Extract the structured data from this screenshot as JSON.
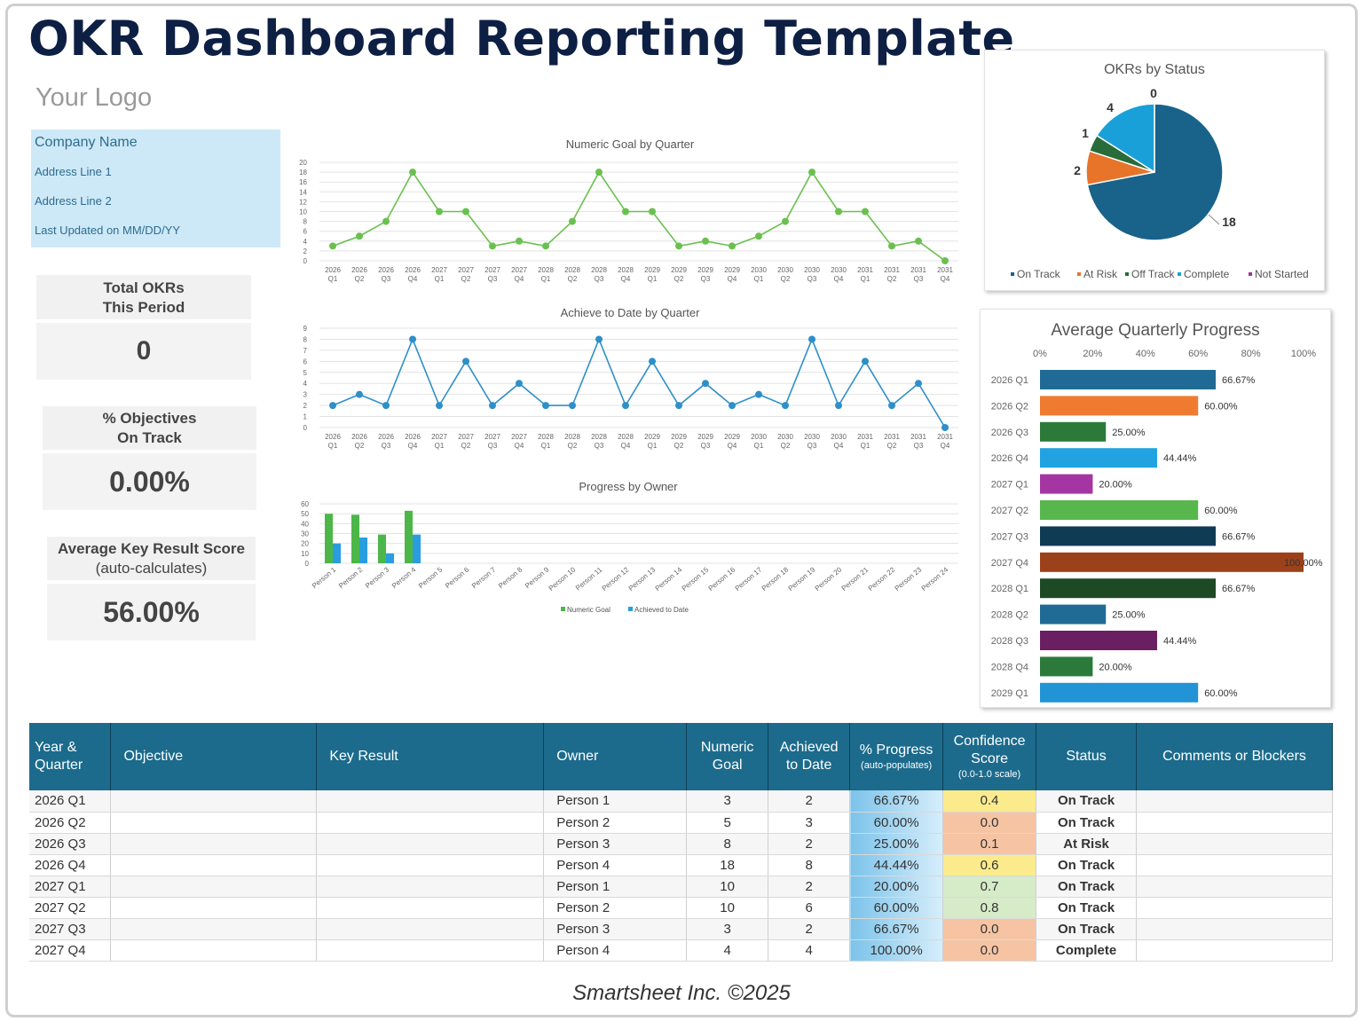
{
  "title": "OKR Dashboard Reporting Template",
  "logo": "Your Logo",
  "company": {
    "name": "Company Name",
    "address1": "Address Line 1",
    "address2": "Address Line 2",
    "updated": "Last Updated on MM/DD/YY"
  },
  "kpis": {
    "total_label": "Total OKRs",
    "total_label2": "This Period",
    "total_value": "0",
    "ontrack_label": "% Objectives",
    "ontrack_label2": "On Track",
    "ontrack_value": "0.00%",
    "avg_label": "Average Key Result Score",
    "avg_label2": "(auto-calculates)",
    "avg_value": "56.00%"
  },
  "charts": {
    "numeric": {
      "title": "Numeric Goal by Quarter",
      "color": "#6ac04f",
      "ylim": [
        0,
        20
      ],
      "yticks": [
        0,
        2,
        4,
        6,
        8,
        10,
        12,
        14,
        16,
        18,
        20
      ],
      "years": [
        "2026",
        "2026",
        "2026",
        "2026",
        "2027",
        "2027",
        "2027",
        "2027",
        "2028",
        "2028",
        "2028",
        "2028",
        "2029",
        "2029",
        "2029",
        "2029",
        "2030",
        "2030",
        "2030",
        "2030",
        "2031",
        "2031",
        "2031",
        "2031"
      ],
      "quarters": [
        "Q1",
        "Q2",
        "Q3",
        "Q4",
        "Q1",
        "Q2",
        "Q3",
        "Q4",
        "Q1",
        "Q2",
        "Q3",
        "Q4",
        "Q1",
        "Q2",
        "Q3",
        "Q4",
        "Q1",
        "Q2",
        "Q3",
        "Q4",
        "Q1",
        "Q2",
        "Q3",
        "Q4"
      ],
      "values": [
        3,
        5,
        8,
        18,
        10,
        10,
        3,
        4,
        3,
        8,
        18,
        10,
        10,
        3,
        4,
        3,
        5,
        8,
        18,
        10,
        10,
        3,
        4,
        0
      ]
    },
    "achieved": {
      "title": "Achieve to Date by Quarter",
      "color": "#2e8fc9",
      "ylim": [
        0,
        9
      ],
      "yticks": [
        0,
        1,
        2,
        3,
        4,
        5,
        6,
        7,
        8,
        9
      ],
      "values": [
        2,
        3,
        2,
        8,
        2,
        6,
        2,
        4,
        2,
        2,
        8,
        2,
        6,
        2,
        4,
        2,
        3,
        2,
        8,
        2,
        6,
        2,
        4,
        0
      ]
    },
    "owner": {
      "title": "Progress by Owner",
      "ylim": [
        0,
        60
      ],
      "yticks": [
        0,
        10,
        20,
        30,
        40,
        50,
        60
      ],
      "categories": [
        "Person 1",
        "Person 2",
        "Person 3",
        "Person 4",
        "Person 5",
        "Person 6",
        "Person 7",
        "Person 8",
        "Person 9",
        "Person 10",
        "Person 11",
        "Person 12",
        "Person 13",
        "Person 14",
        "Person 15",
        "Person 16",
        "Person 17",
        "Person 18",
        "Person 19",
        "Person 20",
        "Person 21",
        "Person 22",
        "Person 23",
        "Person 24"
      ],
      "series": [
        {
          "name": "Numeric Goal",
          "color": "#4cb748",
          "values": [
            50,
            49,
            29,
            53,
            0,
            0,
            0,
            0,
            0,
            0,
            0,
            0,
            0,
            0,
            0,
            0,
            0,
            0,
            0,
            0,
            0,
            0,
            0,
            0
          ]
        },
        {
          "name": "Achieved to Date",
          "color": "#2a9de0",
          "values": [
            20,
            26,
            10,
            29,
            0,
            0,
            0,
            0,
            0,
            0,
            0,
            0,
            0,
            0,
            0,
            0,
            0,
            0,
            0,
            0,
            0,
            0,
            0,
            0
          ]
        }
      ]
    },
    "status": {
      "title": "OKRs by Status",
      "slices": [
        {
          "name": "On Track",
          "value": 18,
          "color": "#19628a"
        },
        {
          "name": "At Risk",
          "value": 2,
          "color": "#e8742a"
        },
        {
          "name": "Off Track",
          "value": 1,
          "color": "#2a6b3a"
        },
        {
          "name": "Complete",
          "value": 4,
          "color": "#1aa0d8"
        },
        {
          "name": "Not Started",
          "value": 0,
          "color": "#a0329a"
        }
      ],
      "labels": [
        "18",
        "2",
        "1",
        "4",
        "0"
      ]
    },
    "avgprog": {
      "title": "Average Quarterly Progress",
      "xticks": [
        "0%",
        "20%",
        "40%",
        "60%",
        "80%",
        "100%"
      ],
      "rows": [
        {
          "label": "2026 Q1",
          "value": 66.67,
          "text": "66.67%",
          "color": "#1f6b95"
        },
        {
          "label": "2026 Q2",
          "value": 60,
          "text": "60.00%",
          "color": "#ee7b30"
        },
        {
          "label": "2026 Q3",
          "value": 25,
          "text": "25.00%",
          "color": "#2c7a3a"
        },
        {
          "label": "2026 Q4",
          "value": 44.44,
          "text": "44.44%",
          "color": "#20a3e0"
        },
        {
          "label": "2027 Q1",
          "value": 20,
          "text": "20.00%",
          "color": "#a535a3"
        },
        {
          "label": "2027 Q2",
          "value": 60,
          "text": "60.00%",
          "color": "#57b74c"
        },
        {
          "label": "2027 Q3",
          "value": 66.67,
          "text": "66.67%",
          "color": "#0f3b55"
        },
        {
          "label": "2027 Q4",
          "value": 100,
          "text": "100.00%",
          "color": "#9b421b"
        },
        {
          "label": "2028 Q1",
          "value": 66.67,
          "text": "66.67%",
          "color": "#1d4a25"
        },
        {
          "label": "2028 Q2",
          "value": 25,
          "text": "25.00%",
          "color": "#1f6b95"
        },
        {
          "label": "2028 Q3",
          "value": 44.44,
          "text": "44.44%",
          "color": "#6a1f63"
        },
        {
          "label": "2028 Q4",
          "value": 20,
          "text": "20.00%",
          "color": "#2c7a3a"
        },
        {
          "label": "2029 Q1",
          "value": 60,
          "text": "60.00%",
          "color": "#2294d6"
        }
      ]
    }
  },
  "table": {
    "headers": {
      "yq": "Year & Quarter",
      "objective": "Objective",
      "kr": "Key Result",
      "owner": "Owner",
      "goal": "Numeric Goal",
      "achieved": "Achieved to Date",
      "progress": "% Progress",
      "progress_sub": "(auto-populates)",
      "confidence": "Confidence Score",
      "confidence_sub": "(0.0-1.0 scale)",
      "status": "Status",
      "comments": "Comments or Blockers"
    },
    "rows": [
      {
        "yq": "2026 Q1",
        "owner": "Person 1",
        "goal": "3",
        "achieved": "2",
        "progress": "66.67%",
        "conf": "0.4",
        "conf_color": "#fbeb8c",
        "status": "On Track",
        "status_class": "st-on"
      },
      {
        "yq": "2026 Q2",
        "owner": "Person 2",
        "goal": "5",
        "achieved": "3",
        "progress": "60.00%",
        "conf": "0.0",
        "conf_color": "#f6c4a3",
        "status": "On Track",
        "status_class": "st-on"
      },
      {
        "yq": "2026 Q3",
        "owner": "Person 3",
        "goal": "8",
        "achieved": "2",
        "progress": "25.00%",
        "conf": "0.1",
        "conf_color": "#f6c4a3",
        "status": "At Risk",
        "status_class": "st-risk"
      },
      {
        "yq": "2026 Q4",
        "owner": "Person 4",
        "goal": "18",
        "achieved": "8",
        "progress": "44.44%",
        "conf": "0.6",
        "conf_color": "#fbeb8c",
        "status": "On Track",
        "status_class": "st-on"
      },
      {
        "yq": "2027 Q1",
        "owner": "Person 1",
        "goal": "10",
        "achieved": "2",
        "progress": "20.00%",
        "conf": "0.7",
        "conf_color": "#d6ebc8",
        "status": "On Track",
        "status_class": "st-on"
      },
      {
        "yq": "2027 Q2",
        "owner": "Person 2",
        "goal": "10",
        "achieved": "6",
        "progress": "60.00%",
        "conf": "0.8",
        "conf_color": "#d6ebc8",
        "status": "On Track",
        "status_class": "st-on"
      },
      {
        "yq": "2027 Q3",
        "owner": "Person 3",
        "goal": "3",
        "achieved": "2",
        "progress": "66.67%",
        "conf": "0.0",
        "conf_color": "#f6c4a3",
        "status": "On Track",
        "status_class": "st-on"
      },
      {
        "yq": "2027 Q4",
        "owner": "Person 4",
        "goal": "4",
        "achieved": "4",
        "progress": "100.00%",
        "conf": "0.0",
        "conf_color": "#f6c4a3",
        "status": "Complete",
        "status_class": "st-comp"
      }
    ]
  },
  "footer": "Smartsheet Inc. ©2025"
}
